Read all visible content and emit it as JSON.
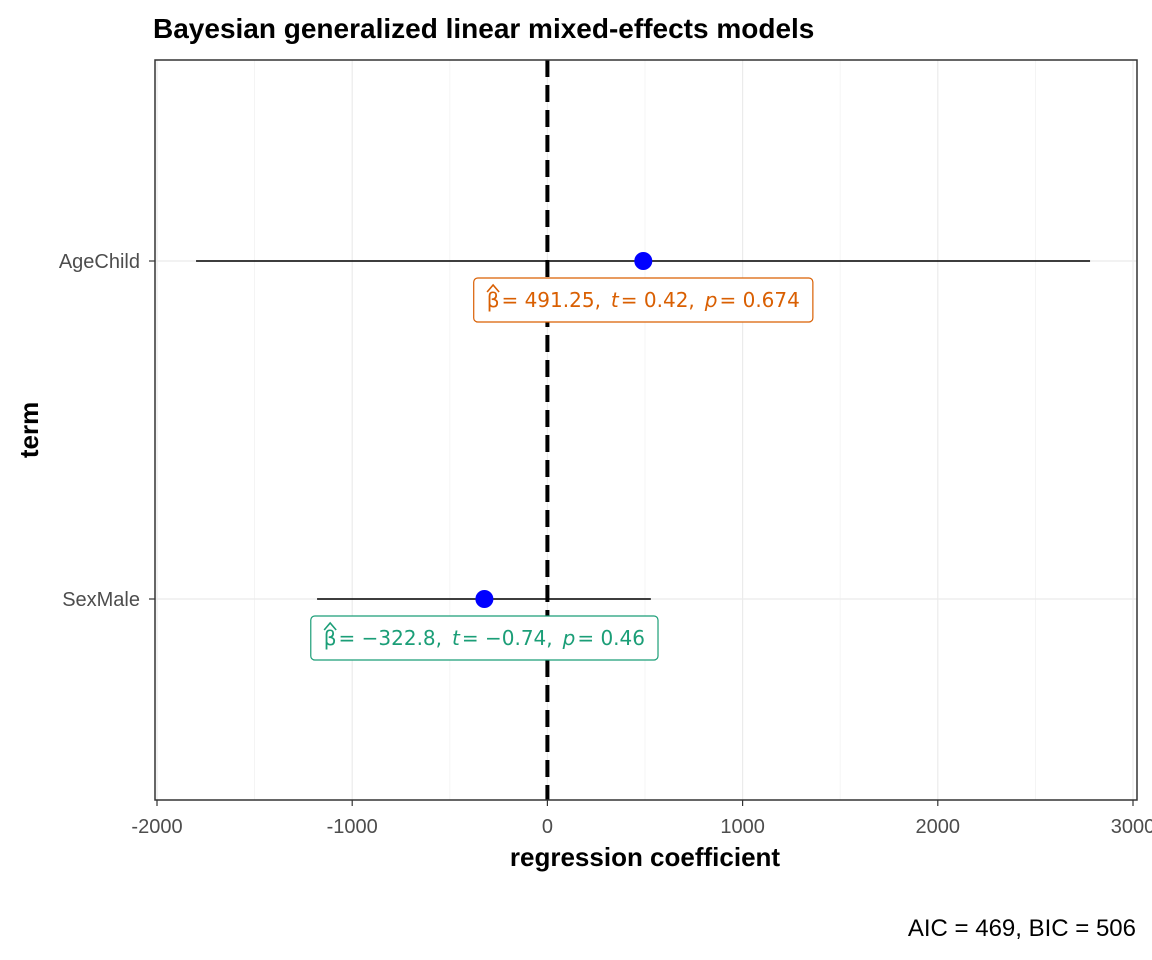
{
  "chart_data": {
    "type": "scatter",
    "title": "Bayesian generalized linear mixed-effects models",
    "xlabel": "regression coefficient",
    "ylabel": "term",
    "xlim": [
      -2000,
      3000
    ],
    "x_ticks": [
      -2000,
      -1000,
      0,
      1000,
      2000,
      3000
    ],
    "x_tick_labels": [
      "-2000",
      "-1000",
      "0",
      "1000",
      "2000",
      "3000"
    ],
    "grid": true,
    "reference_line": {
      "x": 0,
      "style": "dashed"
    },
    "points_color": "#0000ff",
    "terms": [
      {
        "term": "AgeChild",
        "estimate": 491.25,
        "ci_low": -1800,
        "ci_high": 2780,
        "label_color": "#d95f02",
        "label": {
          "beta_sym": "β",
          "beta_value": "= 491.25,",
          "t_sym": "t",
          "t_value": "= 0.42,",
          "p_sym": "p",
          "p_value": "= 0.674"
        }
      },
      {
        "term": "SexMale",
        "estimate": -322.8,
        "ci_low": -1180,
        "ci_high": 530,
        "label_color": "#1b9e77",
        "label": {
          "beta_sym": "β",
          "beta_value": "= −322.8,",
          "t_sym": "t",
          "t_value": "= −0.74,",
          "p_sym": "p",
          "p_value": "= 0.46"
        }
      }
    ],
    "caption": "AIC = 469, BIC = 506"
  }
}
